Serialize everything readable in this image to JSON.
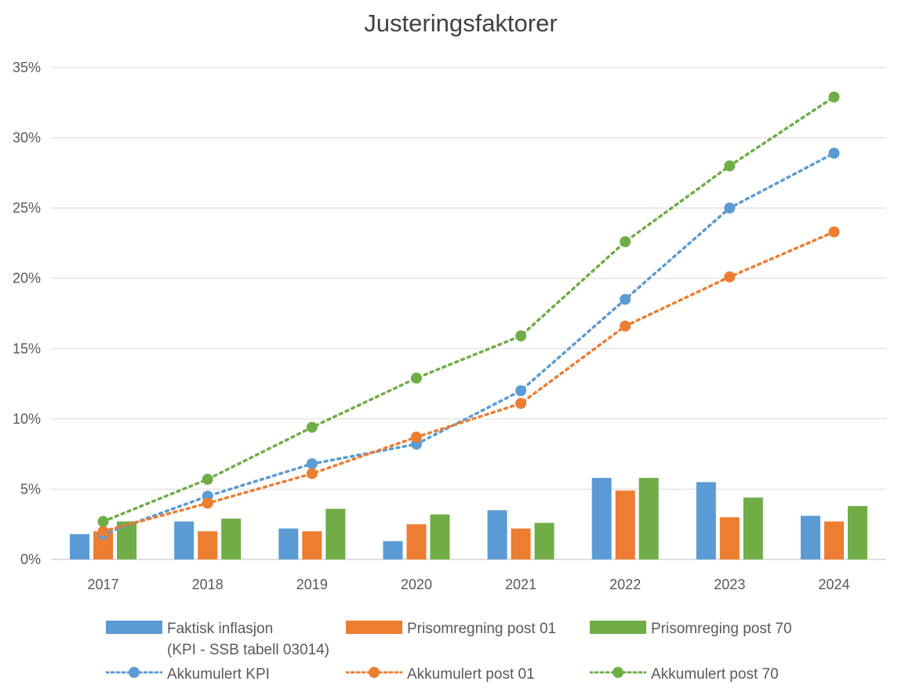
{
  "chart_data": {
    "type": "bar",
    "title": "Justeringsfaktorer",
    "categories": [
      "2017",
      "2018",
      "2019",
      "2020",
      "2021",
      "2022",
      "2023",
      "2024"
    ],
    "y_ticks": [
      "0%",
      "5%",
      "10%",
      "15%",
      "20%",
      "25%",
      "30%",
      "35%"
    ],
    "ylim": [
      0,
      35
    ],
    "grid": true,
    "legend_position": "bottom",
    "bar_series": [
      {
        "name": "Faktisk inflasjon",
        "name_line2": "(KPI - SSB tabell 03014)",
        "color": "#5B9BD5",
        "values": [
          1.8,
          2.7,
          2.2,
          1.3,
          3.5,
          5.8,
          5.5,
          3.1
        ]
      },
      {
        "name": "Prisomregning post 01",
        "color": "#ED7D31",
        "values": [
          2.0,
          2.0,
          2.0,
          2.5,
          2.2,
          4.9,
          3.0,
          2.7
        ]
      },
      {
        "name": "Prisomreging post 70",
        "color": "#70AD47",
        "values": [
          2.7,
          2.9,
          3.6,
          3.2,
          2.6,
          5.8,
          4.4,
          3.8
        ]
      }
    ],
    "line_series": [
      {
        "name": "Akkumulert KPI",
        "color": "#5B9BD5",
        "values": [
          1.8,
          4.5,
          6.8,
          8.2,
          12.0,
          18.5,
          25.0,
          28.9
        ]
      },
      {
        "name": "Akkumulert post 01",
        "color": "#ED7D31",
        "values": [
          2.0,
          4.0,
          6.1,
          8.7,
          11.1,
          16.6,
          20.1,
          23.3
        ]
      },
      {
        "name": "Akkumulert post 70",
        "color": "#70AD47",
        "values": [
          2.7,
          5.7,
          9.4,
          12.9,
          15.9,
          22.6,
          28.0,
          32.9
        ]
      }
    ]
  }
}
